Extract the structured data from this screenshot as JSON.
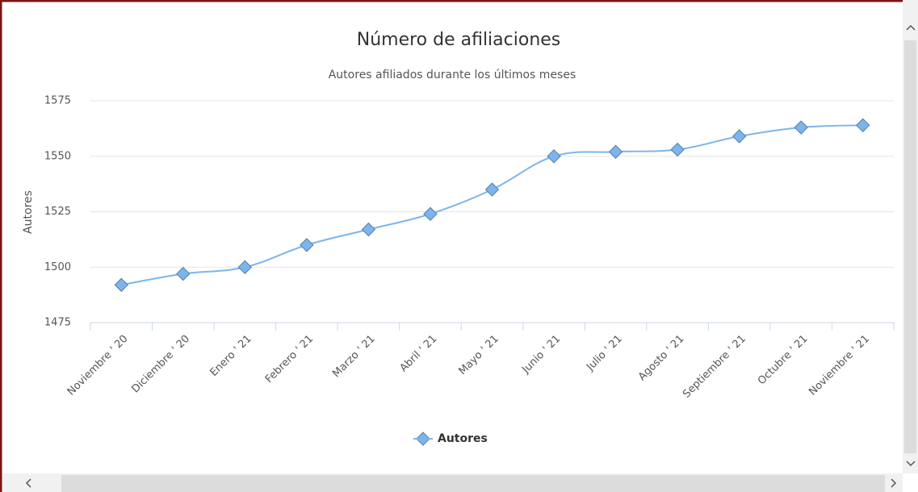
{
  "chart_data": {
    "type": "line",
    "title": "Número de afiliaciones",
    "subtitle": "Autores afiliados durante los últimos meses",
    "y_label": "Autores",
    "categories": [
      "Noviembre ' 20",
      "Diciembre ' 20",
      "Enero ' 21",
      "Febrero ' 21",
      "Marzo ' 21",
      "Abril ' 21",
      "Mayo ' 21",
      "Junio ' 21",
      "Julio ' 21",
      "Agosto ' 21",
      "Septiembre ' 21",
      "Octubre ' 21",
      "Noviembre ' 21"
    ],
    "series": [
      {
        "name": "Autores",
        "color": "#7cb5ec",
        "values": [
          1492,
          1497,
          1500,
          1510,
          1517,
          1524,
          1535,
          1550,
          1552,
          1553,
          1559,
          1563,
          1564
        ]
      }
    ],
    "ylim": [
      1475,
      1575
    ],
    "yticks": [
      1475,
      1500,
      1525,
      1550,
      1575
    ],
    "grid": true,
    "legend": "bottom"
  }
}
